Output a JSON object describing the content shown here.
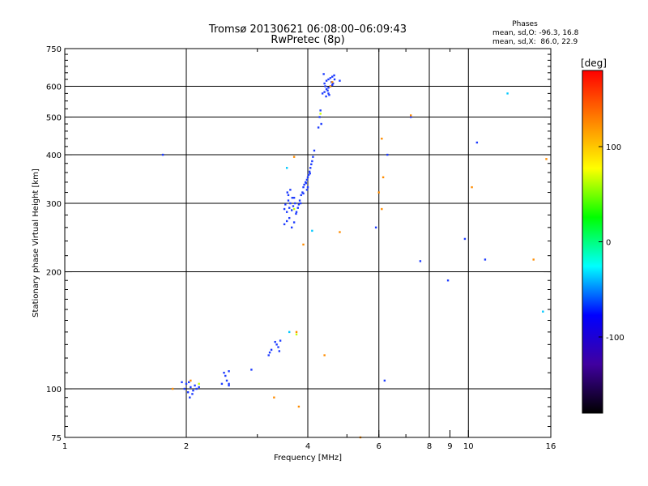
{
  "chart_data": {
    "type": "scatter",
    "title": "Tromsø 20130621 06:08:00–06:09:43",
    "subtitle": "RwPretec (8p)",
    "xlabel": "Frequency [MHz]",
    "ylabel": "Stationary phase Virtual Height [km]",
    "x_scale": "log",
    "y_scale": "log",
    "xlim": [
      1,
      16
    ],
    "ylim": [
      75,
      750
    ],
    "x_ticks": [
      1,
      2,
      4,
      6,
      8,
      9,
      10,
      16
    ],
    "x_tick_labels": [
      "1",
      "2",
      "4",
      "6",
      "8",
      "9",
      "10",
      "16"
    ],
    "y_ticks": [
      75,
      100,
      200,
      300,
      400,
      500,
      600,
      750
    ],
    "y_tick_labels": [
      "75",
      "100",
      "200",
      "300",
      "400",
      "500",
      "600",
      "750"
    ],
    "grid_x": [
      2,
      4,
      6,
      8,
      10
    ],
    "grid_y": [
      100,
      200,
      300,
      400,
      500,
      600
    ],
    "grid": true,
    "stats": {
      "heading": "Phases",
      "line_o": "mean, sd,O: -96.3, 16.8",
      "line_x": "mean, sd,X:  86.0, 22.9"
    },
    "colorbar": {
      "label": "[deg]",
      "range": [
        -180,
        180
      ],
      "ticks": [
        100,
        0,
        -100
      ],
      "tick_labels": [
        "100",
        "0",
        "-100"
      ],
      "colors": [
        "#ff0000",
        "#ff8000",
        "#ffff00",
        "#00ff00",
        "#00ffff",
        "#0000ff",
        "#4000a0",
        "#000000"
      ]
    },
    "series": [
      {
        "color": "#1e3cff",
        "points": [
          [
            1.98,
            100
          ],
          [
            2.02,
            98
          ],
          [
            2.05,
            101
          ],
          [
            2.08,
            99
          ],
          [
            2.1,
            102
          ],
          [
            2.12,
            100
          ],
          [
            2.04,
            95
          ],
          [
            2.07,
            97
          ],
          [
            2.15,
            101
          ],
          [
            2.0,
            103
          ],
          [
            1.95,
            104
          ],
          [
            2.03,
            104
          ],
          [
            2.45,
            103
          ],
          [
            2.5,
            108
          ],
          [
            2.52,
            105
          ],
          [
            2.55,
            103
          ],
          [
            2.48,
            110
          ],
          [
            2.55,
            111
          ],
          [
            2.9,
            112
          ],
          [
            3.2,
            122
          ],
          [
            3.22,
            124
          ],
          [
            3.25,
            126
          ],
          [
            3.35,
            130
          ],
          [
            3.38,
            128
          ],
          [
            3.4,
            125
          ],
          [
            3.42,
            133
          ],
          [
            3.32,
            132
          ],
          [
            3.5,
            290
          ],
          [
            3.55,
            285
          ],
          [
            3.52,
            298
          ],
          [
            3.58,
            305
          ],
          [
            3.6,
            292
          ],
          [
            3.56,
            320
          ],
          [
            3.62,
            300
          ],
          [
            3.65,
            288
          ],
          [
            3.68,
            295
          ],
          [
            3.7,
            310
          ],
          [
            3.72,
            300
          ],
          [
            3.75,
            285
          ],
          [
            3.78,
            292
          ],
          [
            3.8,
            298
          ],
          [
            3.82,
            305
          ],
          [
            3.85,
            315
          ],
          [
            3.88,
            320
          ],
          [
            3.9,
            330
          ],
          [
            3.92,
            335
          ],
          [
            3.95,
            340
          ],
          [
            3.98,
            345
          ],
          [
            4.0,
            350
          ],
          [
            4.02,
            355
          ],
          [
            4.04,
            362
          ],
          [
            4.06,
            370
          ],
          [
            4.08,
            378
          ],
          [
            4.1,
            385
          ],
          [
            4.12,
            395
          ],
          [
            4.15,
            410
          ],
          [
            3.55,
            270
          ],
          [
            3.5,
            265
          ],
          [
            3.6,
            275
          ],
          [
            3.65,
            260
          ],
          [
            3.7,
            268
          ],
          [
            3.58,
            315
          ],
          [
            3.62,
            325
          ],
          [
            3.66,
            310
          ],
          [
            3.74,
            282
          ],
          [
            3.84,
            300
          ],
          [
            3.96,
            338
          ],
          [
            4.05,
            358
          ],
          [
            4.0,
            330
          ],
          [
            3.98,
            325
          ],
          [
            3.9,
            318
          ],
          [
            4.25,
            470
          ],
          [
            4.28,
            500
          ],
          [
            4.3,
            520
          ],
          [
            4.32,
            480
          ],
          [
            4.35,
            575
          ],
          [
            4.4,
            580
          ],
          [
            4.45,
            590
          ],
          [
            4.5,
            595
          ],
          [
            4.55,
            600
          ],
          [
            4.6,
            605
          ],
          [
            4.4,
            610
          ],
          [
            4.45,
            620
          ],
          [
            4.5,
            625
          ],
          [
            4.55,
            630
          ],
          [
            4.6,
            635
          ],
          [
            4.65,
            640
          ],
          [
            4.38,
            645
          ],
          [
            4.42,
            600
          ],
          [
            4.48,
            585
          ],
          [
            4.52,
            570
          ],
          [
            4.58,
            615
          ],
          [
            4.62,
            610
          ],
          [
            4.66,
            625
          ],
          [
            4.44,
            565
          ],
          [
            4.5,
            575
          ],
          [
            2.55,
            102
          ],
          [
            5.9,
            260
          ],
          [
            6.3,
            400
          ],
          [
            6.2,
            105
          ],
          [
            7.6,
            213
          ],
          [
            8.9,
            190
          ],
          [
            9.8,
            243
          ],
          [
            10.5,
            430
          ],
          [
            11.0,
            215
          ],
          [
            7.2,
            500
          ],
          [
            1.75,
            400
          ],
          [
            4.8,
            620
          ]
        ]
      },
      {
        "color": "#ff8c00",
        "points": [
          [
            1.85,
            100
          ],
          [
            2.05,
            105
          ],
          [
            3.8,
            90
          ],
          [
            3.75,
            140
          ],
          [
            4.4,
            122
          ],
          [
            4.8,
            253
          ],
          [
            3.9,
            235
          ],
          [
            3.7,
            395
          ],
          [
            4.6,
            615
          ],
          [
            6.1,
            440
          ],
          [
            6.15,
            350
          ],
          [
            6.0,
            320
          ],
          [
            6.1,
            290
          ],
          [
            7.2,
            505
          ],
          [
            10.2,
            330
          ],
          [
            14.5,
            215
          ],
          [
            15.6,
            390
          ],
          [
            3.3,
            95
          ],
          [
            5.4,
            75
          ],
          [
            4.55,
            600
          ]
        ]
      },
      {
        "color": "#00c8ff",
        "points": [
          [
            3.6,
            140
          ],
          [
            3.55,
            370
          ],
          [
            4.1,
            255
          ],
          [
            12.5,
            575
          ],
          [
            15.3,
            158
          ]
        ]
      },
      {
        "color": "#c8ff00",
        "points": [
          [
            2.15,
            103
          ],
          [
            3.75,
            138
          ],
          [
            3.7,
            290
          ],
          [
            4.3,
            510
          ]
        ]
      }
    ]
  }
}
